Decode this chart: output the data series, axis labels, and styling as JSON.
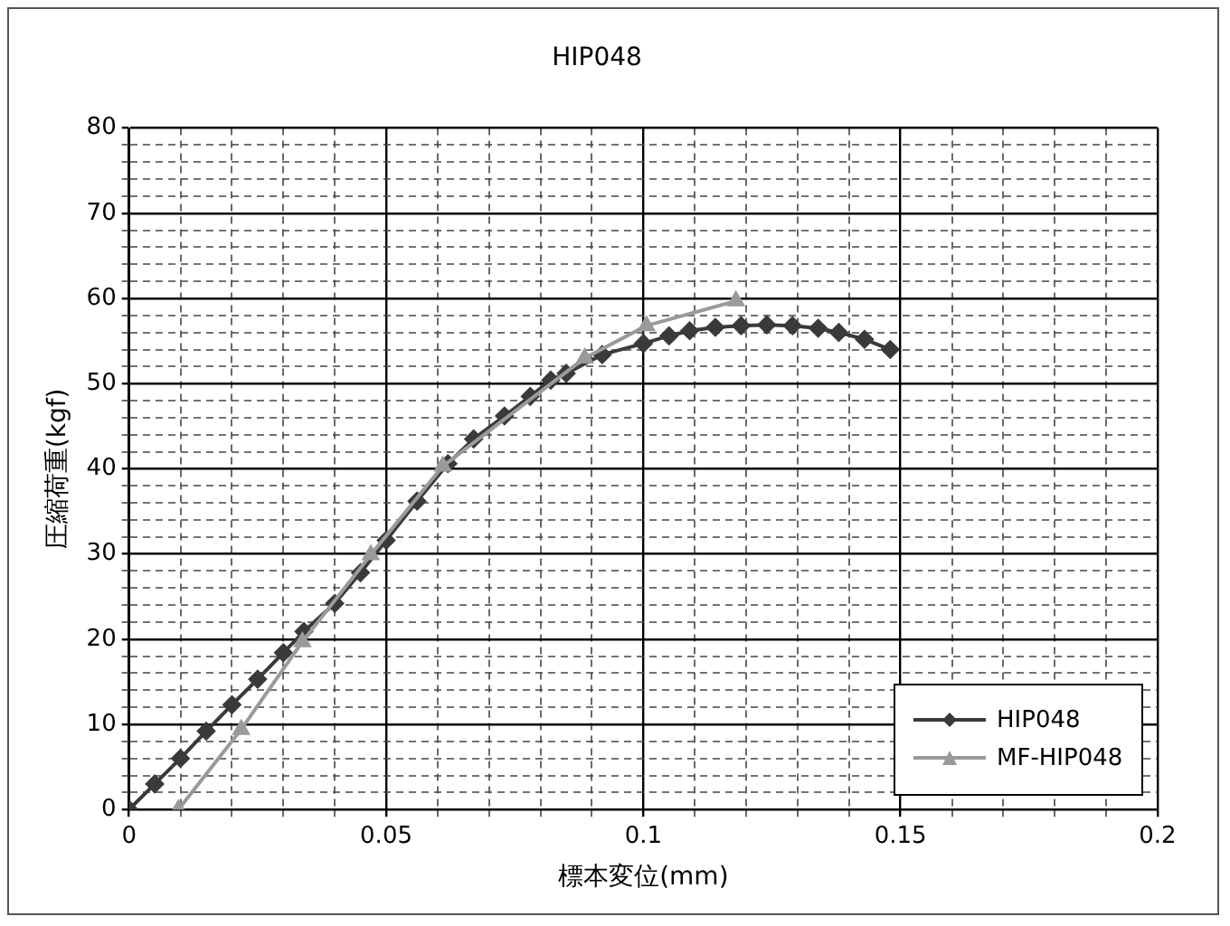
{
  "chart_data": {
    "type": "line",
    "title": "HIP048",
    "xlabel": "標本変位(mm)",
    "ylabel": "圧縮荷重(kgf)",
    "xlim": [
      0,
      0.2
    ],
    "xticks": [
      0,
      {
        "value": 0.01,
        "label": null
      },
      {
        "value": 0.02,
        "label": null
      },
      {
        "value": 0.03,
        "label": null
      },
      {
        "value": 0.04,
        "label": null
      },
      0.05,
      {
        "value": 0.06,
        "label": null
      },
      {
        "value": 0.07,
        "label": null
      },
      {
        "value": 0.08,
        "label": null
      },
      {
        "value": 0.09,
        "label": null
      },
      0.1,
      {
        "value": 0.11,
        "label": null
      },
      {
        "value": 0.12,
        "label": null
      },
      {
        "value": 0.13,
        "label": null
      },
      {
        "value": 0.14,
        "label": null
      },
      0.15,
      {
        "value": 0.16,
        "label": null
      },
      {
        "value": 0.17,
        "label": null
      },
      {
        "value": 0.18,
        "label": null
      },
      {
        "value": 0.19,
        "label": null
      },
      0.2
    ],
    "ylim": [
      0,
      80
    ],
    "yticks": [
      0,
      {
        "value": 2,
        "label": null
      },
      {
        "value": 4,
        "label": null
      },
      {
        "value": 6,
        "label": null
      },
      {
        "value": 8,
        "label": null
      },
      10,
      {
        "value": 12,
        "label": null
      },
      {
        "value": 14,
        "label": null
      },
      {
        "value": 16,
        "label": null
      },
      {
        "value": 18,
        "label": null
      },
      20,
      {
        "value": 22,
        "label": null
      },
      {
        "value": 24,
        "label": null
      },
      {
        "value": 26,
        "label": null
      },
      {
        "value": 28,
        "label": null
      },
      30,
      {
        "value": 32,
        "label": null
      },
      {
        "value": 34,
        "label": null
      },
      {
        "value": 36,
        "label": null
      },
      {
        "value": 38,
        "label": null
      },
      40,
      {
        "value": 42,
        "label": null
      },
      {
        "value": 44,
        "label": null
      },
      {
        "value": 46,
        "label": null
      },
      {
        "value": 48,
        "label": null
      },
      50,
      {
        "value": 52,
        "label": null
      },
      {
        "value": 54,
        "label": null
      },
      {
        "value": 56,
        "label": null
      },
      {
        "value": 58,
        "label": null
      },
      60,
      {
        "value": 62,
        "label": null
      },
      {
        "value": 64,
        "label": null
      },
      {
        "value": 66,
        "label": null
      },
      {
        "value": 68,
        "label": null
      },
      70,
      {
        "value": 72,
        "label": null
      },
      {
        "value": 74,
        "label": null
      },
      {
        "value": 76,
        "label": null
      },
      {
        "value": 78,
        "label": null
      },
      80
    ],
    "grid": true,
    "legend": "bottom right",
    "series": [
      {
        "name": "HIP048",
        "color": "#3a3a3a",
        "marker": "diamond",
        "x": [
          0,
          0.005,
          0.01,
          0.015,
          0.02,
          0.025,
          0.03,
          0.034,
          0.04,
          0.045,
          0.05,
          0.056,
          0.062,
          0.067,
          0.073,
          0.078,
          0.082,
          0.085,
          0.092,
          0.1,
          0.105,
          0.109,
          0.114,
          0.119,
          0.124,
          0.129,
          0.134,
          0.138,
          0.143,
          0.148
        ],
        "values": [
          0,
          3,
          6,
          9.2,
          12.3,
          15.3,
          18.4,
          20.9,
          24.2,
          27.8,
          31.6,
          36.2,
          40.6,
          43.5,
          46.2,
          48.5,
          50.4,
          51.2,
          53.4,
          54.7,
          55.6,
          56.2,
          56.6,
          56.8,
          56.9,
          56.8,
          56.5,
          56,
          55.2,
          54
        ]
      },
      {
        "name": "MF-HIP048",
        "color": "#9a9a9a",
        "marker": "triangle",
        "x": [
          0.0096,
          0.0218,
          0.0337,
          0.047,
          0.061,
          0.0886,
          0.1006,
          0.118
        ],
        "values": [
          0,
          9.4,
          19.7,
          29.9,
          40.3,
          53,
          56.8,
          59.7
        ]
      }
    ]
  }
}
